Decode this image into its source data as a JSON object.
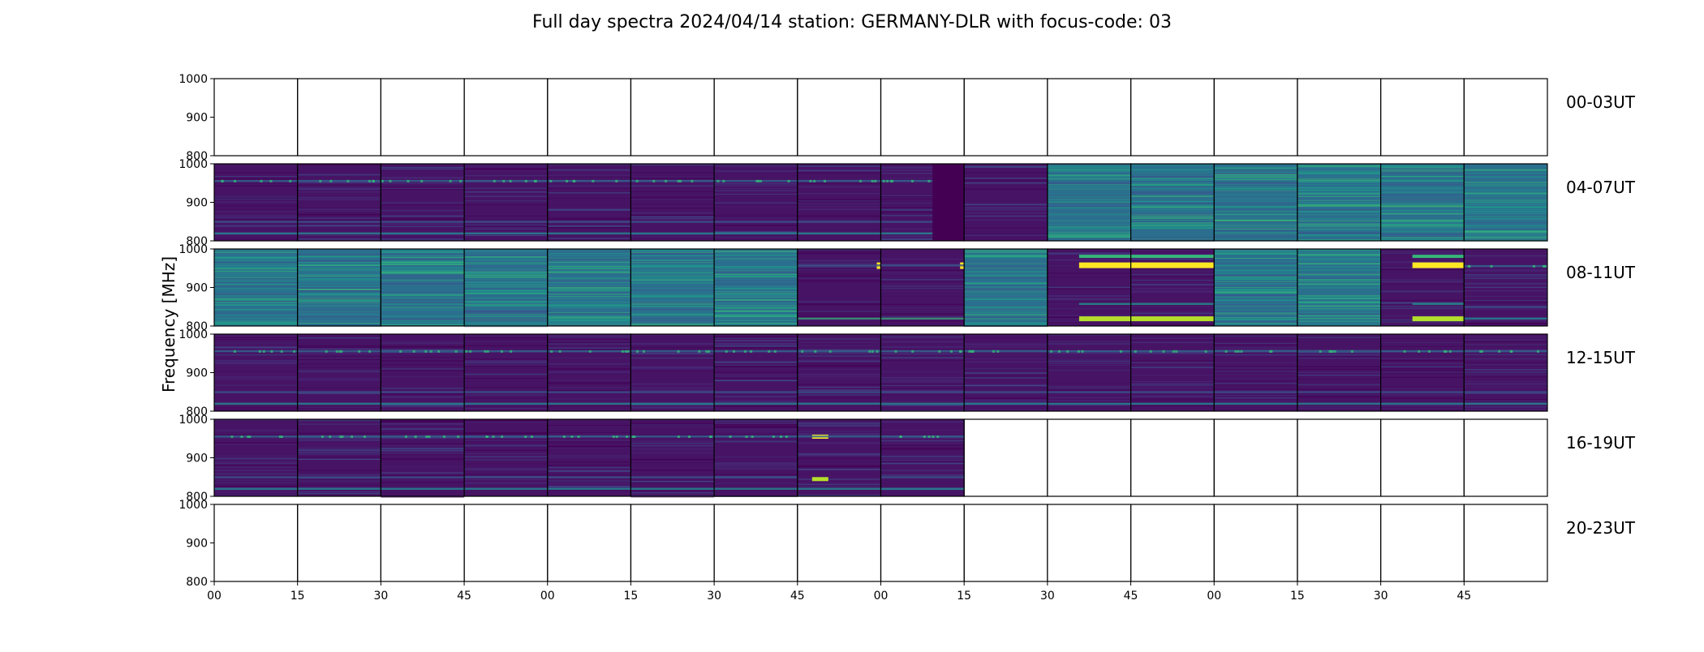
{
  "chart_data": {
    "type": "heatmap",
    "title": "Full day spectra 2024/04/14 station: GERMANY-DLR with focus-code: 03",
    "ylabel": "Frequency [MHz]",
    "xlabel": "",
    "ylim": [
      800,
      1000
    ],
    "yticks": [
      "1000",
      "900",
      "800"
    ],
    "xticks": [
      "00",
      "15",
      "30",
      "45",
      "00",
      "15",
      "30",
      "45",
      "00",
      "15",
      "30",
      "45",
      "00",
      "15",
      "30",
      "45"
    ],
    "colormap": "viridis",
    "grid": false,
    "colors": {
      "low": "#440154",
      "mid": "#31688e",
      "high": "#35b779",
      "peak": "#fde725"
    },
    "rows": [
      {
        "label": "00-03UT",
        "panels": [
          "empty",
          "empty",
          "empty",
          "empty",
          "empty",
          "empty",
          "empty",
          "empty",
          "empty",
          "empty",
          "empty",
          "empty",
          "empty",
          "empty",
          "empty",
          "empty"
        ]
      },
      {
        "label": "04-07UT",
        "panels": [
          "low-band",
          "low-band",
          "low-band",
          "low-band",
          "low-band",
          "low-band",
          "low-band",
          "low-band",
          "low-band-partial",
          "low",
          "high",
          "high",
          "high",
          "high",
          "high",
          "high"
        ]
      },
      {
        "label": "08-11UT",
        "panels": [
          "high",
          "high",
          "high",
          "high",
          "high",
          "high",
          "high",
          "low-burst",
          "low-burst",
          "high",
          "burst",
          "burst-partial",
          "high",
          "high",
          "burst",
          "low-band"
        ]
      },
      {
        "label": "12-15UT",
        "panels": [
          "low-band",
          "low-band",
          "low-band",
          "low-band",
          "low-band",
          "low-band",
          "low-band",
          "low-band",
          "low-band",
          "low-band",
          "low-band",
          "low-band",
          "low-band",
          "low-band",
          "low-band",
          "low-band"
        ]
      },
      {
        "label": "16-19UT",
        "panels": [
          "low-band",
          "low-band",
          "low-band",
          "low-band",
          "low-band",
          "low-band",
          "low-band",
          "burst-yellow",
          "low-band",
          "empty",
          "empty",
          "empty",
          "empty",
          "empty",
          "empty",
          "empty"
        ]
      },
      {
        "label": "20-23UT",
        "panels": [
          "empty",
          "empty",
          "empty",
          "empty",
          "empty",
          "empty",
          "empty",
          "empty",
          "empty",
          "empty",
          "empty",
          "empty",
          "empty",
          "empty",
          "empty",
          "empty"
        ]
      }
    ]
  }
}
